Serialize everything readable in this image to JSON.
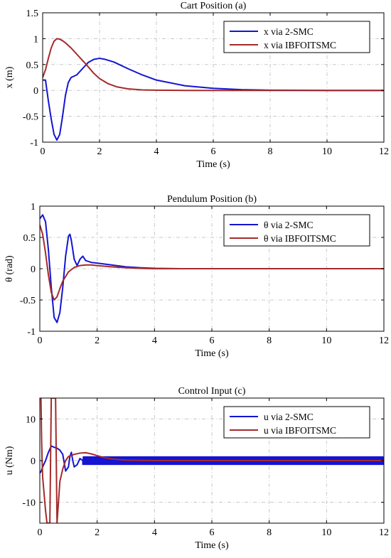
{
  "chart_data": [
    {
      "type": "line",
      "title": "Cart Position (a)",
      "xlabel": "Time (s)",
      "ylabel": "x (m)",
      "xlim": [
        0,
        12
      ],
      "ylim": [
        -1,
        1.5
      ],
      "xticks": [
        0,
        2,
        4,
        6,
        8,
        10,
        12
      ],
      "yticks": [
        -1,
        -0.5,
        0,
        0.5,
        1,
        1.5
      ],
      "ytick_labels": [
        "-1",
        "-0.5",
        "0",
        "0.5",
        "1",
        "1.5"
      ],
      "grid": true,
      "legend": "top-right",
      "series": [
        {
          "name": "x via 2-SMC",
          "color": "#1414d2",
          "x": [
            0,
            0.1,
            0.2,
            0.3,
            0.4,
            0.5,
            0.6,
            0.7,
            0.8,
            0.9,
            1.0,
            1.2,
            1.4,
            1.6,
            1.8,
            2.0,
            2.2,
            2.5,
            3.0,
            3.5,
            4.0,
            5.0,
            6.0,
            7.0,
            8.0,
            9.0,
            10.0,
            12.0
          ],
          "y": [
            0.2,
            0.2,
            -0.2,
            -0.55,
            -0.85,
            -0.96,
            -0.85,
            -0.5,
            -0.1,
            0.15,
            0.25,
            0.3,
            0.42,
            0.54,
            0.6,
            0.62,
            0.6,
            0.55,
            0.42,
            0.3,
            0.2,
            0.09,
            0.04,
            0.015,
            0.005,
            0.002,
            0,
            0
          ]
        },
        {
          "name": "x via IBFOITSMC",
          "color": "#a52a2a",
          "x": [
            0,
            0.1,
            0.2,
            0.3,
            0.4,
            0.5,
            0.6,
            0.7,
            0.8,
            1.0,
            1.2,
            1.5,
            1.8,
            2.0,
            2.3,
            2.6,
            3.0,
            3.5,
            4.0,
            5.0,
            6.0,
            12.0
          ],
          "y": [
            0.25,
            0.4,
            0.62,
            0.82,
            0.95,
            1.0,
            0.99,
            0.96,
            0.92,
            0.82,
            0.7,
            0.52,
            0.33,
            0.23,
            0.13,
            0.07,
            0.03,
            0.01,
            0.004,
            0,
            0,
            0
          ]
        }
      ]
    },
    {
      "type": "line",
      "title": "Pendulum Position (b)",
      "xlabel": "Time (s)",
      "ylabel": "θ (rad)",
      "xlim": [
        0,
        12
      ],
      "ylim": [
        -1,
        1
      ],
      "xticks": [
        0,
        2,
        4,
        6,
        8,
        10,
        12
      ],
      "yticks": [
        -1,
        -0.5,
        0,
        0.5,
        1
      ],
      "ytick_labels": [
        "-1",
        "-0.5",
        "0",
        "0.5",
        "1"
      ],
      "grid": true,
      "legend": "top-right",
      "series": [
        {
          "name": "θ via 2-SMC",
          "color": "#1414d2",
          "x": [
            0,
            0.1,
            0.2,
            0.3,
            0.4,
            0.5,
            0.6,
            0.7,
            0.8,
            0.9,
            1.0,
            1.05,
            1.1,
            1.2,
            1.3,
            1.4,
            1.5,
            1.6,
            1.8,
            2.0,
            2.5,
            3.0,
            3.5,
            4.0,
            5.0,
            12.0
          ],
          "y": [
            0.8,
            0.86,
            0.75,
            0.3,
            -0.3,
            -0.78,
            -0.86,
            -0.7,
            -0.3,
            0.2,
            0.52,
            0.55,
            0.45,
            0.15,
            0.05,
            0.15,
            0.2,
            0.13,
            0.1,
            0.09,
            0.06,
            0.03,
            0.015,
            0.006,
            0,
            0
          ]
        },
        {
          "name": "θ via IBFOITSMC",
          "color": "#a52a2a",
          "x": [
            0,
            0.1,
            0.2,
            0.3,
            0.4,
            0.5,
            0.6,
            0.7,
            0.8,
            1.0,
            1.2,
            1.4,
            1.6,
            1.8,
            2.0,
            2.5,
            3.0,
            3.5,
            4.0,
            12.0
          ],
          "y": [
            0.7,
            0.55,
            0.25,
            -0.1,
            -0.38,
            -0.5,
            -0.45,
            -0.32,
            -0.2,
            -0.05,
            0.02,
            0.05,
            0.06,
            0.06,
            0.05,
            0.03,
            0.015,
            0.005,
            0,
            0
          ]
        }
      ]
    },
    {
      "type": "line",
      "title": "Control Input (c)",
      "xlabel": "Time (s)",
      "ylabel": "u (Nm)",
      "xlim": [
        0,
        12
      ],
      "ylim": [
        -15,
        15
      ],
      "xticks": [
        0,
        2,
        4,
        6,
        8,
        10,
        12
      ],
      "yticks": [
        -10,
        0,
        10
      ],
      "ytick_labels": [
        "-10",
        "0",
        "10"
      ],
      "grid": true,
      "legend": "top-right",
      "series": [
        {
          "name": "u via 2-SMC",
          "color": "#1414d2",
          "chatter_band": [
            -0.9,
            0.9
          ],
          "chatter_from": 1.5,
          "x": [
            0,
            0.05,
            0.1,
            0.2,
            0.3,
            0.4,
            0.5,
            0.6,
            0.7,
            0.8,
            0.9,
            1.0,
            1.05,
            1.1,
            1.15,
            1.2,
            1.3,
            1.4,
            1.5
          ],
          "y": [
            -3,
            -2.5,
            -1.5,
            0,
            2,
            3.5,
            3.2,
            3.0,
            2.5,
            1.5,
            -2.5,
            -1.5,
            1,
            2,
            0,
            -1.5,
            -1,
            0.5,
            0
          ]
        },
        {
          "name": "u via IBFOITSMC",
          "color": "#a52a2a",
          "x": [
            0,
            0.02,
            0.04,
            0.06,
            0.08,
            0.1,
            0.15,
            0.2,
            0.25,
            0.3,
            0.35,
            0.4,
            0.45,
            0.5,
            0.55,
            0.6,
            0.65,
            0.7,
            0.8,
            0.9,
            1.0,
            1.2,
            1.4,
            1.6,
            1.8,
            2.0,
            2.2,
            2.5,
            3.0,
            4.0,
            12.0
          ],
          "y": [
            15,
            15,
            15,
            6,
            0,
            -4,
            -8,
            -12,
            -15,
            -15,
            -15,
            15,
            15,
            15,
            15,
            -15,
            -10,
            -5,
            -2,
            0,
            1,
            1.5,
            1.8,
            1.9,
            1.6,
            1.2,
            0.8,
            0.4,
            0.1,
            0,
            0
          ]
        }
      ]
    }
  ]
}
